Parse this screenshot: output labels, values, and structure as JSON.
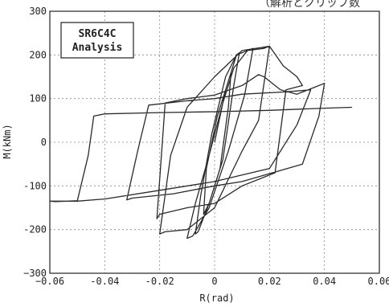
{
  "caption": "（解析とクリップ数",
  "chart_data": {
    "type": "line",
    "title": "",
    "xlabel": "R(rad)",
    "ylabel": "M(kNm)",
    "xlim": [
      -0.06,
      0.06
    ],
    "ylim": [
      -300,
      300
    ],
    "x_ticks": [
      -0.06,
      -0.04,
      -0.02,
      0,
      0.02,
      0.04,
      0.06
    ],
    "x_tick_labels": [
      "−0.06",
      "-0.04",
      "-0.02",
      "0",
      "0.02",
      "0.04",
      "0.06"
    ],
    "y_ticks": [
      300,
      200,
      100,
      0,
      -100,
      -200,
      -300
    ],
    "y_tick_labels": [
      "300",
      "200",
      "100",
      "0",
      "-100",
      "-200",
      "−300"
    ],
    "grid": true,
    "legend_position": "top-left",
    "legend_lines": [
      "SR6C4C",
      "Analysis"
    ],
    "series": [
      {
        "values": [
          [
            0,
            0
          ],
          [
            0.004,
            120
          ],
          [
            0.006,
            160
          ],
          [
            0.005,
            80
          ],
          [
            0.002,
            -60
          ],
          [
            -0.002,
            -140
          ],
          [
            -0.004,
            -165
          ],
          [
            -0.003,
            -60
          ],
          [
            0.001,
            60
          ],
          [
            0.004,
            120
          ],
          [
            0.004,
            120
          ],
          [
            0.008,
            200
          ],
          [
            0.009,
            205
          ],
          [
            0.007,
            130
          ],
          [
            0.003,
            -40
          ],
          [
            -0.002,
            -140
          ],
          [
            -0.006,
            -205
          ],
          [
            -0.007,
            -210
          ],
          [
            -0.005,
            -120
          ],
          [
            -0.001,
            20
          ],
          [
            0.004,
            150
          ],
          [
            0.008,
            200
          ],
          [
            0.008,
            200
          ],
          [
            0.012,
            210
          ],
          [
            0.014,
            215
          ],
          [
            0.011,
            110
          ],
          [
            0.005,
            -20
          ],
          [
            -0.002,
            -150
          ],
          [
            -0.008,
            -215
          ],
          [
            -0.01,
            -220
          ],
          [
            -0.007,
            -140
          ],
          [
            -0.002,
            -30
          ],
          [
            0.003,
            90
          ],
          [
            0.007,
            170
          ],
          [
            0.012,
            210
          ],
          [
            0.012,
            210
          ],
          [
            0.018,
            215
          ],
          [
            0.02,
            220
          ],
          [
            0.016,
            50
          ],
          [
            0.01,
            -20
          ],
          [
            0.0,
            -150
          ],
          [
            -0.01,
            -200
          ],
          [
            -0.018,
            -205
          ],
          [
            -0.02,
            -210
          ],
          [
            -0.016,
            -30
          ],
          [
            -0.01,
            80
          ],
          [
            0.0,
            150
          ],
          [
            0.01,
            210
          ],
          [
            0.02,
            220
          ],
          [
            0.02,
            220
          ],
          [
            0.025,
            175
          ],
          [
            0.03,
            150
          ],
          [
            0.032,
            130
          ],
          [
            0.026,
            120
          ],
          [
            0.022,
            -70
          ],
          [
            0.01,
            -100
          ],
          [
            0.0,
            -140
          ],
          [
            -0.01,
            -150
          ],
          [
            -0.02,
            -165
          ],
          [
            -0.021,
            -175
          ],
          [
            -0.018,
            90
          ],
          [
            -0.01,
            100
          ],
          [
            0.0,
            108
          ],
          [
            0.01,
            130
          ],
          [
            0.016,
            155
          ],
          [
            0.018,
            150
          ],
          [
            0.024,
            120
          ],
          [
            0.03,
            110
          ],
          [
            0.03,
            110
          ],
          [
            0.036,
            125
          ],
          [
            0.04,
            135
          ],
          [
            0.038,
            60
          ],
          [
            0.032,
            -50
          ],
          [
            0.01,
            -90
          ],
          [
            0.0,
            -100
          ],
          [
            -0.015,
            -118
          ],
          [
            -0.03,
            -128
          ],
          [
            -0.032,
            -132
          ],
          [
            -0.028,
            -20
          ],
          [
            -0.024,
            85
          ],
          [
            -0.01,
            95
          ],
          [
            0.0,
            100
          ],
          [
            0.01,
            110
          ],
          [
            0.025,
            115
          ],
          [
            0.035,
            120
          ],
          [
            0.035,
            120
          ],
          [
            0.03,
            40
          ],
          [
            0.02,
            -60
          ],
          [
            0.0,
            -90
          ],
          [
            -0.02,
            -110
          ],
          [
            -0.04,
            -130
          ],
          [
            -0.05,
            -135
          ],
          [
            -0.06,
            -135
          ],
          [
            -0.058,
            -136
          ],
          [
            -0.05,
            -134
          ],
          [
            -0.046,
            -30
          ],
          [
            -0.044,
            60
          ],
          [
            -0.04,
            65
          ],
          [
            -0.02,
            68
          ],
          [
            0.0,
            70
          ],
          [
            0.02,
            73
          ],
          [
            0.04,
            78
          ],
          [
            0.05,
            80
          ]
        ]
      }
    ]
  }
}
